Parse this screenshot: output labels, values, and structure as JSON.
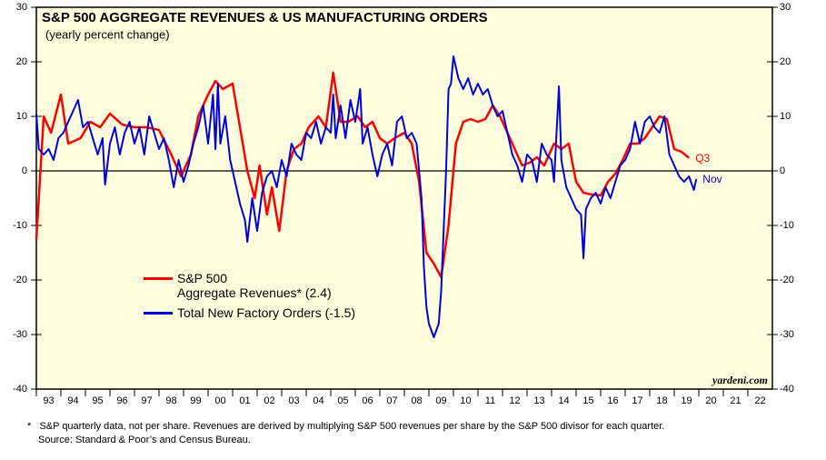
{
  "chart_data": {
    "type": "line",
    "title": "S&P 500 AGGREGATE REVENUES & US MANUFACTURING ORDERS",
    "subtitle": "(yearly percent change)",
    "source_mark": "yardeni.com",
    "notes": [
      "*   S&P quarterly data, not per share. Revenues are derived by multiplying S&P 500 revenues per share by the S&P 500 divisor for each quarter.",
      "Source: Standard & Poor’s and Census Bureau."
    ],
    "ylim": [
      -40,
      30
    ],
    "yticks": [
      -40,
      -30,
      -20,
      -10,
      0,
      10,
      20,
      30
    ],
    "xlim": [
      1993,
      2023
    ],
    "xticks": [
      {
        "value": 1993,
        "label": "93"
      },
      {
        "value": 1994,
        "label": "94"
      },
      {
        "value": 1995,
        "label": "95"
      },
      {
        "value": 1996,
        "label": "96"
      },
      {
        "value": 1997,
        "label": "97"
      },
      {
        "value": 1998,
        "label": "98"
      },
      {
        "value": 1999,
        "label": "99"
      },
      {
        "value": 2000,
        "label": "00"
      },
      {
        "value": 2001,
        "label": "01"
      },
      {
        "value": 2002,
        "label": "02"
      },
      {
        "value": 2003,
        "label": "03"
      },
      {
        "value": 2004,
        "label": "04"
      },
      {
        "value": 2005,
        "label": "05"
      },
      {
        "value": 2006,
        "label": "06"
      },
      {
        "value": 2007,
        "label": "07"
      },
      {
        "value": 2008,
        "label": "08"
      },
      {
        "value": 2009,
        "label": "09"
      },
      {
        "value": 2010,
        "label": "10"
      },
      {
        "value": 2011,
        "label": "11"
      },
      {
        "value": 2012,
        "label": "12"
      },
      {
        "value": 2013,
        "label": "13"
      },
      {
        "value": 2014,
        "label": "14"
      },
      {
        "value": 2015,
        "label": "15"
      },
      {
        "value": 2016,
        "label": "16"
      },
      {
        "value": 2017,
        "label": "17"
      },
      {
        "value": 2018,
        "label": "18"
      },
      {
        "value": 2019,
        "label": "19"
      },
      {
        "value": 2020,
        "label": "20"
      },
      {
        "value": 2021,
        "label": "21"
      },
      {
        "value": 2022,
        "label": "22"
      }
    ],
    "series": [
      {
        "name": "S&P 500\nAggregate Revenues* (2.4)",
        "color": "#ff0000",
        "end_label": "Q3",
        "x": [
          1993.0,
          1993.3,
          1993.6,
          1994.0,
          1994.3,
          1994.8,
          1995.2,
          1995.6,
          1996.0,
          1996.5,
          1997.0,
          1997.5,
          1998.0,
          1998.5,
          1998.9,
          1999.3,
          1999.6,
          2000.0,
          2000.3,
          2000.6,
          2001.0,
          2001.3,
          2001.6,
          2001.9,
          2002.1,
          2002.4,
          2002.6,
          2002.9,
          2003.2,
          2003.5,
          2003.8,
          2004.1,
          2004.5,
          2004.8,
          2005.1,
          2005.4,
          2005.7,
          2006.1,
          2006.4,
          2006.7,
          2007.0,
          2007.3,
          2007.6,
          2008.0,
          2008.3,
          2008.6,
          2008.9,
          2009.2,
          2009.5,
          2009.8,
          2010.1,
          2010.4,
          2010.7,
          2011.0,
          2011.3,
          2011.6,
          2011.9,
          2012.2,
          2012.5,
          2012.8,
          2013.1,
          2013.4,
          2013.7,
          2014.1,
          2014.4,
          2014.7,
          2015.0,
          2015.3,
          2015.6,
          2016.0,
          2016.3,
          2016.6,
          2016.9,
          2017.2,
          2017.5,
          2017.8,
          2018.1,
          2018.4,
          2018.7,
          2019.0,
          2019.3,
          2019.6
        ],
        "values": [
          -12.5,
          10,
          7,
          14,
          5,
          6,
          9,
          8,
          10.5,
          8.5,
          8,
          8,
          7.5,
          3,
          -1,
          3,
          10,
          14,
          16.5,
          15,
          16,
          8,
          0,
          -5,
          1,
          -8,
          -3,
          -11,
          0,
          4,
          5,
          8,
          10,
          8,
          18,
          9,
          9,
          10,
          8,
          9,
          6,
          5,
          6,
          7,
          5,
          -2,
          -15,
          -17,
          -19.5,
          -10,
          5,
          9,
          9.5,
          9,
          9.5,
          12,
          10,
          7,
          4,
          1,
          1.5,
          2.5,
          1,
          5,
          4,
          5,
          -2,
          -4,
          -4.3,
          -4.5,
          -2,
          -0.5,
          2,
          5,
          5,
          6,
          8,
          10,
          9.5,
          4,
          3.5,
          2.4
        ]
      },
      {
        "name": "Total New Factory Orders (-1.5)",
        "color": "#0000dd",
        "end_label": "Nov",
        "x": [
          1993.0,
          1993.1,
          1993.3,
          1993.5,
          1993.7,
          1993.9,
          1994.1,
          1994.3,
          1994.5,
          1994.7,
          1994.9,
          1995.1,
          1995.3,
          1995.5,
          1995.7,
          1995.8,
          1996.0,
          1996.2,
          1996.4,
          1996.6,
          1996.8,
          1997.0,
          1997.2,
          1997.4,
          1997.6,
          1997.8,
          1998.0,
          1998.2,
          1998.4,
          1998.6,
          1998.8,
          1999.0,
          1999.2,
          1999.4,
          1999.6,
          1999.8,
          2000.0,
          2000.2,
          2000.3,
          2000.4,
          2000.5,
          2000.7,
          2000.9,
          2001.1,
          2001.3,
          2001.5,
          2001.6,
          2001.8,
          2002.0,
          2002.2,
          2002.4,
          2002.6,
          2002.8,
          2003.0,
          2003.2,
          2003.4,
          2003.6,
          2003.8,
          2004.0,
          2004.2,
          2004.4,
          2004.6,
          2004.8,
          2005.0,
          2005.1,
          2005.2,
          2005.4,
          2005.6,
          2005.8,
          2006.0,
          2006.2,
          2006.3,
          2006.5,
          2006.7,
          2006.9,
          2007.1,
          2007.3,
          2007.5,
          2007.7,
          2007.9,
          2008.1,
          2008.3,
          2008.5,
          2008.7,
          2008.8,
          2008.9,
          2009.0,
          2009.2,
          2009.4,
          2009.5,
          2009.7,
          2009.8,
          2009.9,
          2010.0,
          2010.1,
          2010.2,
          2010.4,
          2010.6,
          2010.8,
          2011.0,
          2011.2,
          2011.4,
          2011.6,
          2011.8,
          2012.0,
          2012.2,
          2012.4,
          2012.6,
          2012.8,
          2013.0,
          2013.2,
          2013.4,
          2013.6,
          2013.8,
          2014.0,
          2014.1,
          2014.3,
          2014.4,
          2014.6,
          2014.8,
          2015.0,
          2015.2,
          2015.3,
          2015.4,
          2015.6,
          2015.8,
          2016.0,
          2016.2,
          2016.4,
          2016.6,
          2016.8,
          2017.0,
          2017.2,
          2017.4,
          2017.6,
          2017.8,
          2018.0,
          2018.2,
          2018.4,
          2018.6,
          2018.8,
          2019.0,
          2019.2,
          2019.4,
          2019.6,
          2019.8,
          2019.9
        ],
        "values": [
          10.5,
          4,
          3,
          4,
          2,
          6,
          7,
          9,
          11,
          13,
          8,
          9,
          6,
          3,
          6,
          -2.5,
          5,
          8,
          3,
          7,
          9,
          5,
          8,
          3,
          10,
          7,
          4,
          6,
          2,
          -3,
          2,
          -2,
          1,
          5,
          8,
          12,
          5,
          14,
          4,
          16,
          5,
          10,
          2,
          -2,
          -6,
          -9,
          -13,
          -5,
          -11,
          -4,
          -1,
          0,
          -3,
          2,
          -1,
          5,
          3,
          2,
          7,
          6,
          9,
          5,
          8,
          7,
          14,
          6,
          12,
          6,
          13,
          9,
          15,
          5,
          8,
          3,
          -1,
          3,
          5,
          1,
          9,
          10,
          6,
          7,
          5,
          -5,
          -18,
          -25,
          -28,
          -30.5,
          -28,
          -22,
          0,
          15,
          16,
          21,
          19,
          17,
          15,
          17,
          14,
          16,
          14,
          15,
          12,
          10,
          11,
          7,
          3,
          1,
          -2,
          3,
          2,
          -2,
          5,
          3,
          2,
          -2,
          15.5,
          2,
          -3,
          -5,
          -7,
          -8,
          -16,
          -7,
          -5,
          -4,
          -6,
          -3,
          -5,
          -2,
          1,
          2,
          4,
          9,
          5,
          9,
          10,
          8,
          7,
          10,
          3,
          1,
          -1,
          -2,
          -1,
          -3.5,
          -1.5
        ]
      }
    ]
  }
}
